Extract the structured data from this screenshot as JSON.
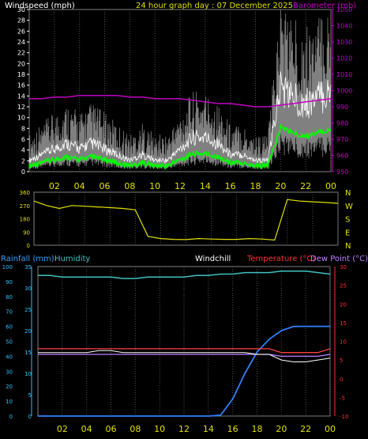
{
  "header": {
    "left_title": "Windspeed (mph)",
    "center_title": "24 hour graph day : 07 December 2025",
    "right_title": "Barometer (mb)"
  },
  "bottom_header": {
    "rainfall": "Rainfall (mm)",
    "humidity": "Humidity",
    "windchill": "Windchill",
    "temperature": "Temperature (°C)",
    "dewpoint": "Dew Point (°C)"
  },
  "x_tick_labels": [
    "02",
    "04",
    "06",
    "08",
    "10",
    "12",
    "14",
    "16",
    "18",
    "20",
    "22",
    "00"
  ],
  "colors": {
    "windspeed_avg": "#ffffff",
    "windspeed_gust_bg": "#808080",
    "wind_gust_line": "#00ff00",
    "barometer": "#c000c0",
    "direction": "#e0e000",
    "rainfall": "#3080ff",
    "humidity": "#40c0c0",
    "windchill": "#ffffff",
    "temperature": "#ff4040",
    "dewpoint": "#c080ff",
    "x_labels": "#e0e000",
    "axis_left_wind": "#ffffff",
    "axis_right_baro": "#c000c0",
    "axis_rain": "#30c0ff",
    "axis_temp": "#ff3030"
  },
  "chart_data": [
    {
      "type": "line",
      "title": "24 hour graph day : 07 December 2025",
      "ylabel": "Windspeed (mph)",
      "y2label": "Barometer (mb)",
      "ylim": [
        0,
        30
      ],
      "y2lim": [
        950,
        1050
      ],
      "y_ticks": [
        0,
        2,
        4,
        6,
        8,
        10,
        12,
        14,
        16,
        18,
        20,
        22,
        24,
        26,
        28,
        30
      ],
      "y2_ticks": [
        950,
        960,
        970,
        980,
        990,
        1000,
        1010,
        1020,
        1030,
        1040,
        1050
      ],
      "x_hours": [
        0,
        1,
        2,
        3,
        4,
        5,
        6,
        7,
        8,
        9,
        10,
        11,
        12,
        13,
        14,
        15,
        16,
        17,
        18,
        19,
        20,
        21,
        22,
        23,
        24
      ],
      "series": [
        {
          "name": "Windspeed (mph)",
          "values": [
            2,
            3,
            4,
            5,
            4,
            5,
            4,
            3,
            2,
            3,
            2,
            2,
            4,
            6,
            6,
            5,
            3,
            3,
            2,
            2,
            15,
            13,
            12,
            13,
            14
          ]
        },
        {
          "name": "Barometer (mb)",
          "values": [
            995,
            995,
            996,
            996,
            997,
            997,
            997,
            997,
            996,
            996,
            995,
            995,
            995,
            994,
            993,
            992,
            992,
            991,
            990,
            990,
            991,
            992,
            993,
            994,
            995
          ]
        }
      ]
    },
    {
      "type": "line",
      "y_ticks": [
        0,
        90,
        180,
        270,
        360
      ],
      "ylim": [
        0,
        360
      ],
      "right_labels": [
        "N",
        "W",
        "S",
        "E",
        "N"
      ],
      "x_hours": [
        0,
        1,
        2,
        3,
        4,
        5,
        6,
        7,
        8,
        9,
        10,
        11,
        12,
        13,
        14,
        15,
        16,
        17,
        18,
        19,
        20,
        21,
        22,
        23,
        24
      ],
      "series": [
        {
          "name": "Wind Direction",
          "values": [
            300,
            270,
            250,
            270,
            265,
            260,
            255,
            250,
            240,
            60,
            45,
            40,
            38,
            45,
            42,
            40,
            40,
            45,
            42,
            35,
            310,
            300,
            295,
            290,
            285
          ]
        }
      ]
    },
    {
      "type": "line",
      "ylim": [
        0,
        100
      ],
      "y_ticks": [
        0,
        10,
        20,
        30,
        40,
        50,
        60,
        70,
        80,
        90,
        100
      ],
      "y2lim": [
        0,
        35
      ],
      "y2_ticks": [
        0,
        5,
        10,
        15,
        20,
        25,
        30,
        35
      ],
      "y3lim": [
        -10,
        30
      ],
      "y3_ticks": [
        -10,
        -5,
        0,
        5,
        10,
        15,
        20,
        25,
        30
      ],
      "x_hours": [
        0,
        1,
        2,
        3,
        4,
        5,
        6,
        7,
        8,
        9,
        10,
        11,
        12,
        13,
        14,
        15,
        16,
        17,
        18,
        19,
        20,
        21,
        22,
        23,
        24
      ],
      "series": [
        {
          "name": "Rainfall (mm)",
          "values": [
            0,
            0,
            0,
            0,
            0,
            0,
            0,
            0,
            0,
            0,
            0,
            0,
            0,
            0,
            0,
            0.2,
            4,
            10,
            15,
            18,
            20,
            21,
            21,
            21,
            21
          ]
        },
        {
          "name": "Humidity",
          "values": [
            94,
            94,
            93,
            93,
            93,
            93,
            93,
            92,
            92,
            93,
            93,
            93,
            93,
            94,
            94,
            95,
            95,
            96,
            96,
            96,
            97,
            97,
            97,
            96,
            95
          ]
        },
        {
          "name": "Windchill",
          "values": [
            7,
            7,
            7,
            7,
            7,
            7.5,
            7.5,
            7,
            7,
            7,
            7,
            7,
            7,
            7,
            7,
            7,
            7,
            7,
            6.5,
            6.5,
            5,
            4.5,
            4.5,
            5,
            5.5
          ]
        },
        {
          "name": "Temperature (°C)",
          "values": [
            8,
            8,
            8,
            8,
            8,
            8,
            8,
            8,
            8,
            8,
            8,
            8,
            8,
            8,
            8,
            8,
            8,
            8,
            8,
            8,
            7,
            7,
            7,
            7,
            8
          ]
        },
        {
          "name": "Dew Point (°C)",
          "values": [
            6.5,
            6.5,
            6.5,
            6.5,
            6.5,
            6.5,
            6.5,
            6.5,
            6.5,
            6.5,
            6.5,
            6.5,
            6.5,
            6.5,
            6.5,
            6.5,
            6.5,
            6.5,
            6.5,
            6.5,
            6,
            6,
            6,
            6,
            6.5
          ]
        }
      ]
    }
  ]
}
